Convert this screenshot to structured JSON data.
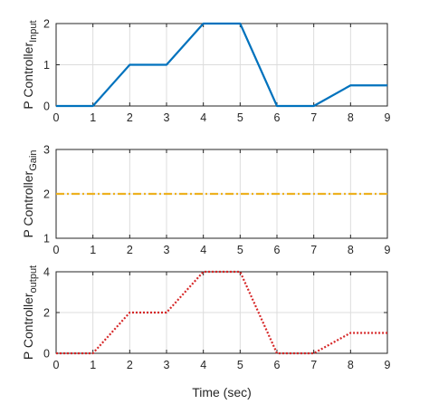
{
  "chart_data": [
    {
      "type": "line",
      "ylabel": "P Controller",
      "ylabel_sub": "Input",
      "xlabel": "",
      "xlim": [
        0,
        9
      ],
      "ylim": [
        0,
        2
      ],
      "xticks": [
        0,
        1,
        2,
        3,
        4,
        5,
        6,
        7,
        8,
        9
      ],
      "yticks": [
        0,
        1,
        2
      ],
      "grid": true,
      "series": [
        {
          "color": "#0072BD",
          "style": "solid",
          "x": [
            0,
            1,
            2,
            3,
            4,
            5,
            6,
            7,
            8,
            9
          ],
          "y": [
            0,
            0,
            1,
            1,
            2,
            2,
            0,
            0,
            0.5,
            0.5
          ]
        }
      ]
    },
    {
      "type": "line",
      "ylabel": "P Controller",
      "ylabel_sub": "Gain",
      "xlabel": "",
      "xlim": [
        0,
        9
      ],
      "ylim": [
        1,
        3
      ],
      "xticks": [
        0,
        1,
        2,
        3,
        4,
        5,
        6,
        7,
        8,
        9
      ],
      "yticks": [
        1,
        2,
        3
      ],
      "grid": true,
      "series": [
        {
          "color": "#EDB120",
          "style": "dashdot",
          "x": [
            0,
            9
          ],
          "y": [
            2,
            2
          ]
        }
      ]
    },
    {
      "type": "line",
      "ylabel": "P Controller",
      "ylabel_sub": "output",
      "xlabel": "Time (sec)",
      "xlim": [
        0,
        9
      ],
      "ylim": [
        0,
        4
      ],
      "xticks": [
        0,
        1,
        2,
        3,
        4,
        5,
        6,
        7,
        8,
        9
      ],
      "yticks": [
        0,
        2,
        4
      ],
      "grid": true,
      "series": [
        {
          "color": "#D62728",
          "style": "dotted",
          "x": [
            0,
            1,
            2,
            3,
            4,
            5,
            6,
            7,
            8,
            9
          ],
          "y": [
            0,
            0,
            2,
            2,
            4,
            4,
            0,
            0,
            1,
            1
          ]
        }
      ]
    }
  ]
}
